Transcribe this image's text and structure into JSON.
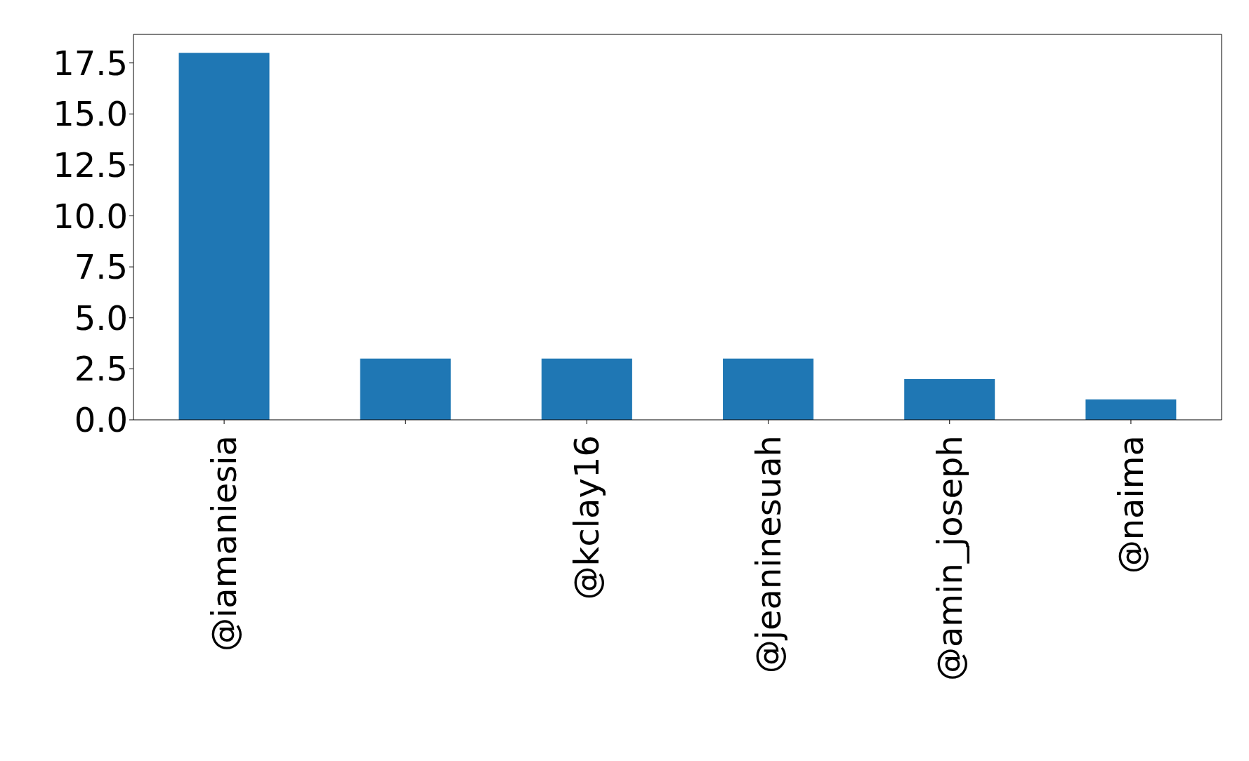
{
  "chart_data": {
    "type": "bar",
    "categories": [
      "@iamaniesia",
      null,
      "@kclay16",
      "@jeaninesuah",
      "@amin_joseph",
      "@naima"
    ],
    "values": [
      18,
      3,
      3,
      3,
      2,
      1
    ],
    "color": "#1f77b4",
    "ylim": [
      0,
      18.9
    ],
    "yticks": [
      {
        "value": 0,
        "label": "0.0"
      },
      {
        "value": 2.5,
        "label": "2.5"
      },
      {
        "value": 5,
        "label": "5.0"
      },
      {
        "value": 7.5,
        "label": "7.5"
      },
      {
        "value": 10,
        "label": "10.0"
      },
      {
        "value": 12.5,
        "label": "12.5"
      },
      {
        "value": 15,
        "label": "15.0"
      },
      {
        "value": 17.5,
        "label": "17.5"
      }
    ],
    "grid": false
  }
}
